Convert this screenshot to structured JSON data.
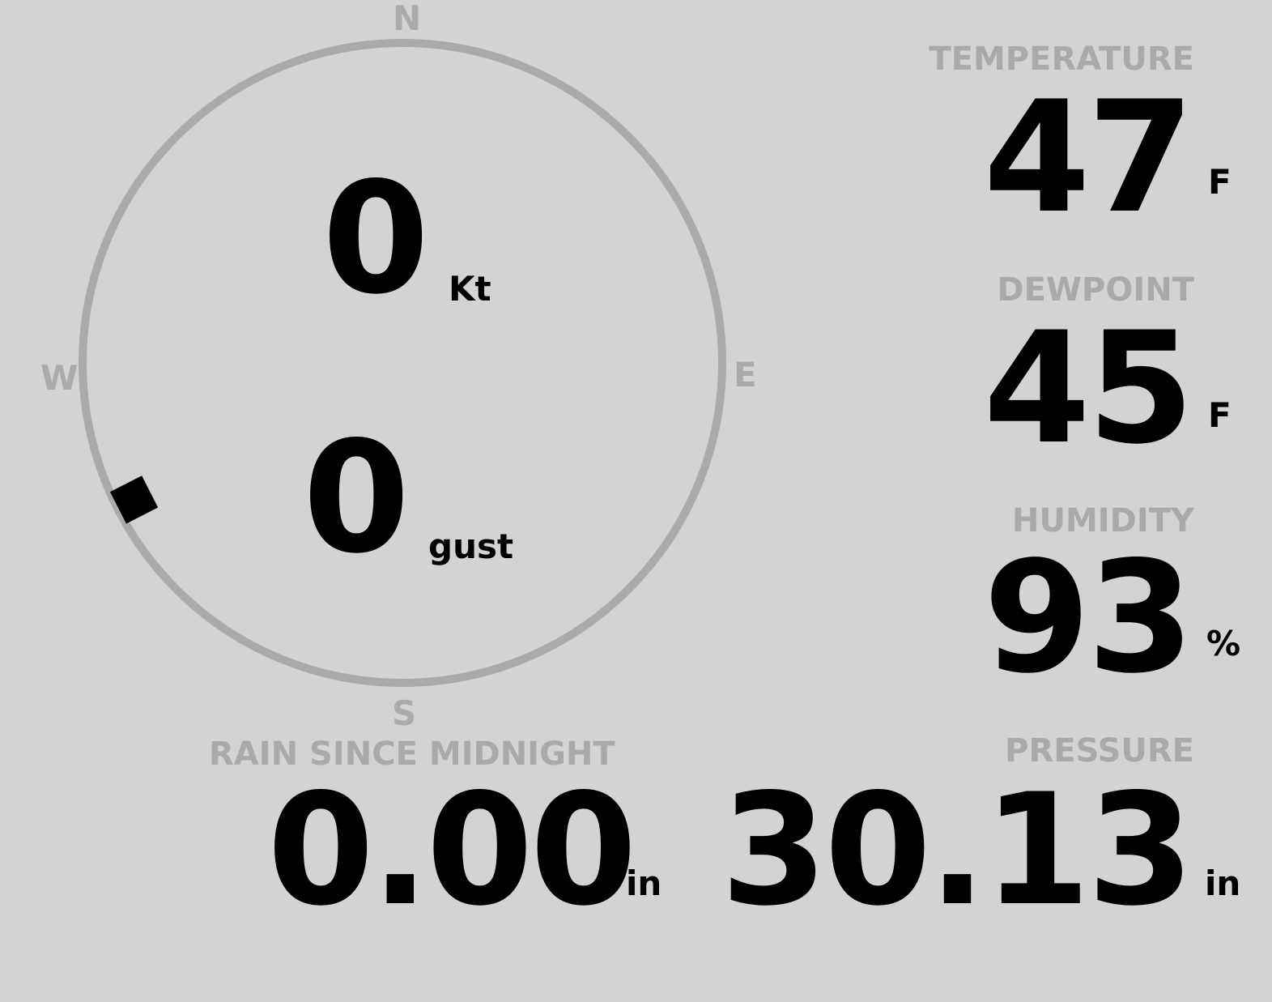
{
  "wind": {
    "compass": {
      "north": "N",
      "east": "E",
      "south": "S",
      "west": "W"
    },
    "direction_deg": 243,
    "speed": "0",
    "speed_unit": "Kt",
    "gust": "0",
    "gust_unit": "gust"
  },
  "temperature": {
    "label": "TEMPERATURE",
    "value": "47",
    "unit": "F"
  },
  "dewpoint": {
    "label": "DEWPOINT",
    "value": "45",
    "unit": "F"
  },
  "humidity": {
    "label": "HUMIDITY",
    "value": "93",
    "unit": "%"
  },
  "rain": {
    "label": "RAIN SINCE MIDNIGHT",
    "value": "0.00",
    "unit": "in"
  },
  "pressure": {
    "label": "PRESSURE",
    "value": "30.13",
    "unit": "in"
  },
  "colors": {
    "background": "#d3d3d3",
    "muted": "#aaaaaa",
    "value": "#000000"
  }
}
